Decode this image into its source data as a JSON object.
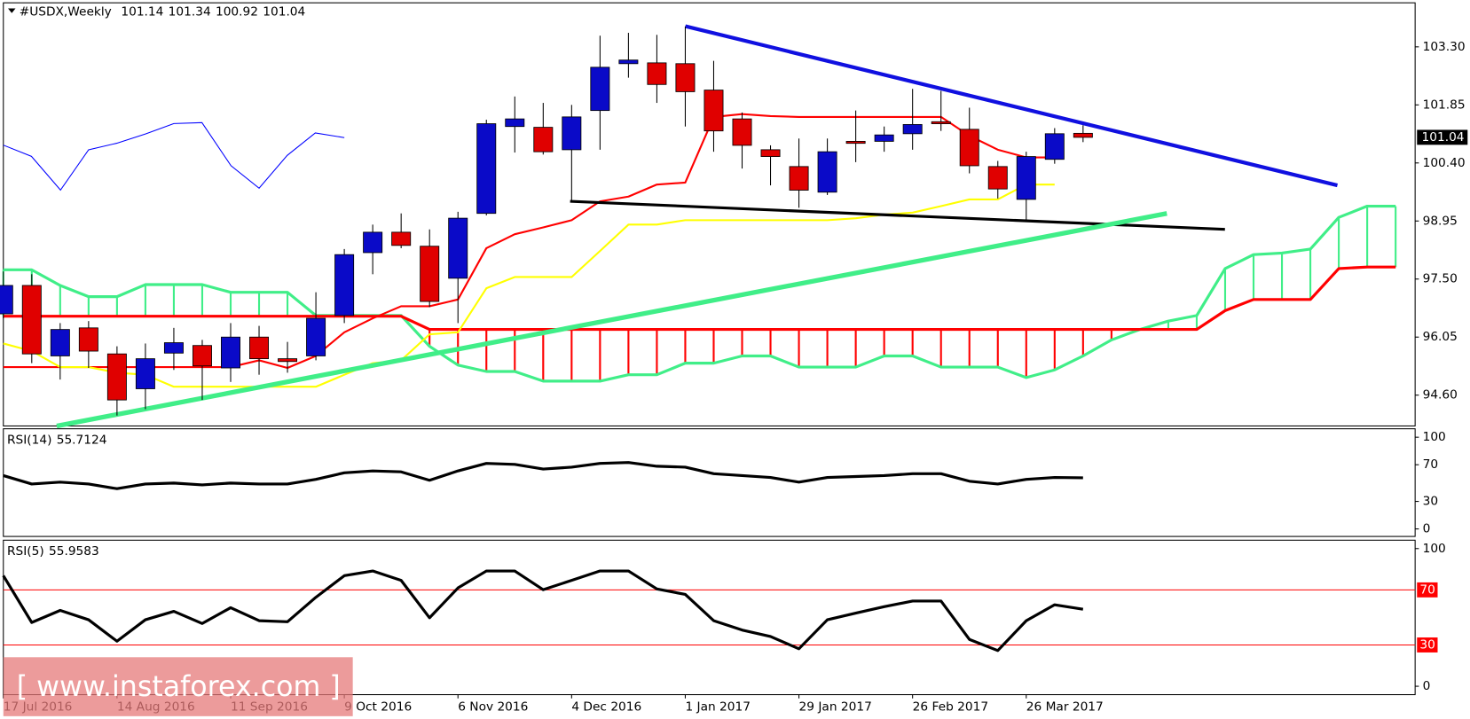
{
  "chart_data": [
    {
      "type": "candlestick",
      "title": "#USDX,Weekly",
      "categories": [
        "17 Jul 2016",
        null,
        null,
        null,
        "14 Aug 2016",
        null,
        null,
        null,
        "11 Sep 2016",
        null,
        null,
        null,
        "9 Oct 2016",
        null,
        null,
        null,
        "6 Nov 2016",
        null,
        null,
        null,
        "4 Dec 2016",
        null,
        null,
        null,
        "1 Jan 2017",
        null,
        null,
        null,
        "29 Jan 2017",
        null,
        null,
        null,
        "26 Feb 2017",
        null,
        null,
        null,
        "26 Mar 2017",
        null,
        null,
        null,
        null,
        null,
        null,
        null,
        null,
        null,
        null,
        null,
        null,
        null
      ],
      "open": [
        96.63,
        97.34,
        95.58,
        96.28,
        95.63,
        94.76,
        95.65,
        95.84,
        95.28,
        96.05,
        95.51,
        95.58,
        96.59,
        98.16,
        98.67,
        98.32,
        97.52,
        99.14,
        101.31,
        101.29,
        100.73,
        101.71,
        102.88,
        102.9,
        102.88,
        102.22,
        101.5,
        100.73,
        100.31,
        99.67,
        100.94,
        100.94,
        101.13,
        101.43,
        101.24,
        100.31,
        99.49,
        100.49,
        101.14,
        null,
        null,
        null,
        null,
        null,
        null,
        null,
        null,
        null,
        null,
        null
      ],
      "high": [
        97.69,
        97.62,
        96.4,
        96.45,
        95.82,
        95.89,
        96.28,
        95.98,
        96.4,
        96.33,
        95.93,
        97.17,
        98.25,
        98.86,
        99.14,
        98.74,
        99.18,
        101.48,
        102.06,
        101.9,
        101.85,
        103.58,
        103.65,
        103.6,
        103.81,
        102.95,
        101.66,
        100.84,
        101.01,
        101.01,
        101.71,
        101.31,
        102.25,
        102.2,
        101.78,
        100.45,
        100.68,
        101.27,
        101.34,
        null,
        null,
        null,
        null,
        null,
        null,
        null,
        null,
        null,
        null,
        null
      ],
      "low": [
        96.52,
        95.4,
        94.99,
        95.28,
        94.09,
        94.25,
        95.23,
        94.48,
        94.93,
        95.11,
        95.16,
        95.47,
        96.4,
        97.62,
        98.27,
        96.8,
        96.4,
        99.09,
        100.66,
        100.61,
        99.44,
        100.73,
        102.53,
        101.9,
        101.31,
        100.68,
        100.26,
        99.84,
        99.28,
        99.6,
        100.42,
        100.68,
        100.73,
        101.2,
        100.14,
        99.51,
        98.93,
        100.38,
        100.92,
        null,
        null,
        null,
        null,
        null,
        null,
        null,
        null,
        null,
        null,
        null
      ],
      "close": [
        97.34,
        95.63,
        96.24,
        95.7,
        94.48,
        95.51,
        95.91,
        95.33,
        96.05,
        95.51,
        95.44,
        96.52,
        98.11,
        98.67,
        98.34,
        96.94,
        99.02,
        101.38,
        101.5,
        100.68,
        101.55,
        102.79,
        102.97,
        102.36,
        102.18,
        101.2,
        100.84,
        100.56,
        99.72,
        100.68,
        100.89,
        101.1,
        101.36,
        101.38,
        100.33,
        99.75,
        100.56,
        101.13,
        101.04,
        null,
        null,
        null,
        null,
        null,
        null,
        null,
        null,
        null,
        null,
        null
      ],
      "up_color": "#0a0ac8",
      "down_color": "#e00000",
      "series": [
        {
          "color": "#ff0000",
          "values": [
            95.3,
            95.3,
            95.3,
            95.3,
            95.3,
            95.3,
            95.3,
            95.3,
            95.3,
            95.47,
            95.28,
            95.58,
            96.17,
            96.52,
            96.82,
            96.82,
            96.99,
            98.27,
            98.62,
            98.79,
            98.97,
            99.44,
            99.56,
            99.86,
            99.91,
            101.55,
            101.62,
            101.57,
            101.55,
            101.55,
            101.55,
            101.55,
            101.55,
            101.55,
            101.08,
            100.73,
            100.54,
            100.54,
            null,
            null,
            null,
            null,
            null,
            null,
            null,
            null,
            null,
            null,
            null,
            null
          ]
        },
        {
          "color": "#ffff00",
          "values": [
            95.89,
            95.7,
            95.3,
            95.3,
            95.16,
            95.11,
            94.81,
            94.81,
            94.81,
            94.81,
            94.81,
            94.81,
            95.11,
            95.4,
            95.47,
            96.12,
            96.17,
            97.27,
            97.55,
            97.55,
            97.55,
            98.2,
            98.86,
            98.86,
            98.97,
            98.97,
            98.97,
            98.97,
            98.97,
            98.97,
            99.02,
            99.11,
            99.16,
            99.32,
            99.49,
            99.49,
            99.86,
            99.86,
            null,
            null,
            null,
            null,
            null,
            null,
            null,
            null,
            null,
            null,
            null,
            null
          ]
        }
      ],
      "cloud": [
        {
          "color": "#40ee88",
          "values": [
            97.73,
            97.73,
            97.34,
            97.06,
            97.06,
            97.36,
            97.36,
            97.36,
            97.17,
            97.17,
            97.17,
            96.59,
            96.59,
            96.59,
            96.59,
            95.82,
            95.35,
            95.19,
            95.19,
            94.95,
            94.95,
            94.95,
            95.11,
            95.11,
            95.4,
            95.4,
            95.58,
            95.58,
            95.3,
            95.3,
            95.3,
            95.58,
            95.58,
            95.3,
            95.3,
            95.3,
            95.04,
            95.23,
            95.58,
            95.98,
            96.24,
            96.45,
            96.59,
            97.76,
            98.11,
            98.15,
            98.25,
            99.04,
            99.32,
            99.32
          ]
        },
        {
          "color": "#ff0000",
          "values": [
            96.57,
            96.57,
            96.57,
            96.57,
            96.57,
            96.57,
            96.57,
            96.57,
            96.57,
            96.57,
            96.57,
            96.57,
            96.57,
            96.57,
            96.57,
            96.24,
            96.24,
            96.24,
            96.24,
            96.24,
            96.24,
            96.24,
            96.24,
            96.24,
            96.24,
            96.24,
            96.24,
            96.24,
            96.24,
            96.24,
            96.24,
            96.24,
            96.24,
            96.24,
            96.24,
            96.24,
            96.24,
            96.24,
            96.24,
            96.24,
            96.24,
            96.24,
            96.24,
            96.71,
            96.99,
            96.99,
            96.99,
            97.76,
            97.8,
            97.8
          ]
        }
      ],
      "ylim": [
        93.83,
        104.4
      ],
      "yticks": [
        {
          "value": 103.3,
          "label": "103.30"
        },
        101.85,
        {
          "value": 100.4,
          "label": "100.40"
        },
        98.95,
        {
          "value": 97.5,
          "label": "97.50"
        },
        96.05,
        {
          "value": 94.6,
          "label": "94.60"
        }
      ]
    },
    {
      "type": "line",
      "title": "RSI(14)",
      "last_value": 55.7124,
      "color": "#000000",
      "values": [
        58.2,
        49.0,
        51.0,
        49.0,
        43.9,
        49.0,
        50.0,
        48.0,
        50.0,
        49.0,
        49.0,
        54.1,
        61.2,
        63.3,
        62.2,
        53.1,
        63.3,
        71.4,
        70.4,
        65.3,
        67.3,
        71.4,
        72.4,
        68.4,
        67.3,
        60.2,
        58.2,
        56.1,
        51.0,
        56.1,
        57.1,
        58.2,
        60.2,
        60.2,
        52.0,
        49.0,
        54.1,
        56.1,
        55.7
      ],
      "ylim": [
        -8.2,
        109.2
      ],
      "yticks": [
        100,
        70,
        30,
        0
      ]
    },
    {
      "type": "line",
      "title": "RSI(5)",
      "last_value": 55.9583,
      "color": "#000000",
      "values": [
        80.3,
        46.3,
        55.1,
        48.3,
        32.7,
        48.3,
        54.4,
        45.6,
        57.1,
        47.6,
        46.9,
        64.6,
        80.3,
        83.7,
        76.9,
        49.7,
        71.4,
        83.7,
        83.7,
        70.1,
        76.9,
        83.7,
        83.7,
        70.7,
        66.7,
        47.6,
        40.8,
        36.1,
        27.2,
        48.3,
        53.1,
        57.8,
        61.9,
        61.9,
        34.0,
        25.9,
        47.6,
        59.2,
        56.0
      ],
      "ylim": [
        -6.1,
        106.1
      ],
      "yticks": [
        100,
        0
      ],
      "levels": [
        70,
        30
      ],
      "level_color": "#ff0000"
    }
  ],
  "watermark": "[ www.instaforex.com ]"
}
